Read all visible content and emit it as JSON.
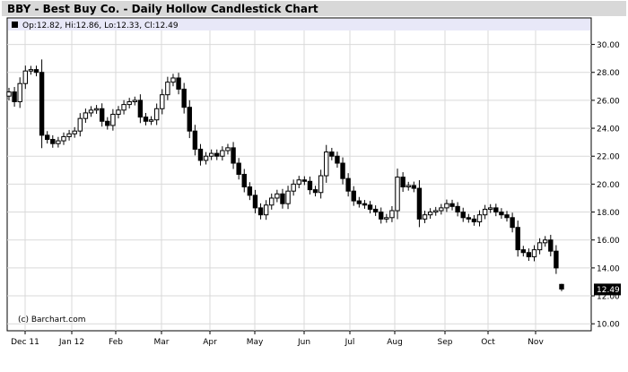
{
  "title": "BBY - Best Buy Co. - Daily Hollow Candlestick Chart",
  "legend": {
    "symbol_color": "#000000",
    "text": "Op:12.82, Hi:12.86, Lo:12.33, Cl:12.49"
  },
  "watermark": "(c) Barchart.com",
  "last_price_label": "12.49",
  "colors": {
    "title_bg": "#d8d8d8",
    "legend_bg": "#e8e8f8",
    "grid": "#d9d9d9",
    "candle": "#000000",
    "plot_bg": "#ffffff",
    "price_tag_bg": "#000000"
  },
  "chart_data": {
    "type": "candlestick",
    "style": "hollow",
    "grid": true,
    "y_axis_side": "right",
    "ylim": [
      9.5,
      31.0
    ],
    "y_ticks": [
      "10.00",
      "12.00",
      "14.00",
      "16.00",
      "18.00",
      "20.00",
      "22.00",
      "24.00",
      "26.00",
      "28.00",
      "30.00"
    ],
    "x_ticks": [
      "Dec 11",
      "Jan 12",
      "Feb",
      "Mar",
      "Apr",
      "May",
      "Jun",
      "Jul",
      "Aug",
      "Sep",
      "Oct",
      "Nov"
    ],
    "last": {
      "open": 12.82,
      "high": 12.86,
      "low": 12.33,
      "close": 12.49
    },
    "closes": [
      26.6,
      25.9,
      27.2,
      28.1,
      28.2,
      28.0,
      23.5,
      23.2,
      22.9,
      23.1,
      23.4,
      23.6,
      23.8,
      24.7,
      25.1,
      25.3,
      25.4,
      24.5,
      24.2,
      25.0,
      25.3,
      25.7,
      25.9,
      26.0,
      24.8,
      24.5,
      24.6,
      25.4,
      26.4,
      27.3,
      27.6,
      26.8,
      25.5,
      23.8,
      22.5,
      21.7,
      22.0,
      22.2,
      22.0,
      22.4,
      22.6,
      21.5,
      20.7,
      19.8,
      19.2,
      18.3,
      17.8,
      18.5,
      19.0,
      19.3,
      18.6,
      19.5,
      20.0,
      20.3,
      20.2,
      19.6,
      19.4,
      20.6,
      22.3,
      22.0,
      21.5,
      20.4,
      19.5,
      18.8,
      18.6,
      18.5,
      18.2,
      18.0,
      17.5,
      17.6,
      18.1,
      20.5,
      19.8,
      19.9,
      19.7,
      17.5,
      17.8,
      18.0,
      18.1,
      18.3,
      18.6,
      18.4,
      18.0,
      17.6,
      17.5,
      17.3,
      17.8,
      18.2,
      18.3,
      18.0,
      17.8,
      17.6,
      16.9,
      15.3,
      15.1,
      14.8,
      15.3,
      15.8,
      16.0,
      15.2,
      14.0,
      12.49
    ]
  }
}
